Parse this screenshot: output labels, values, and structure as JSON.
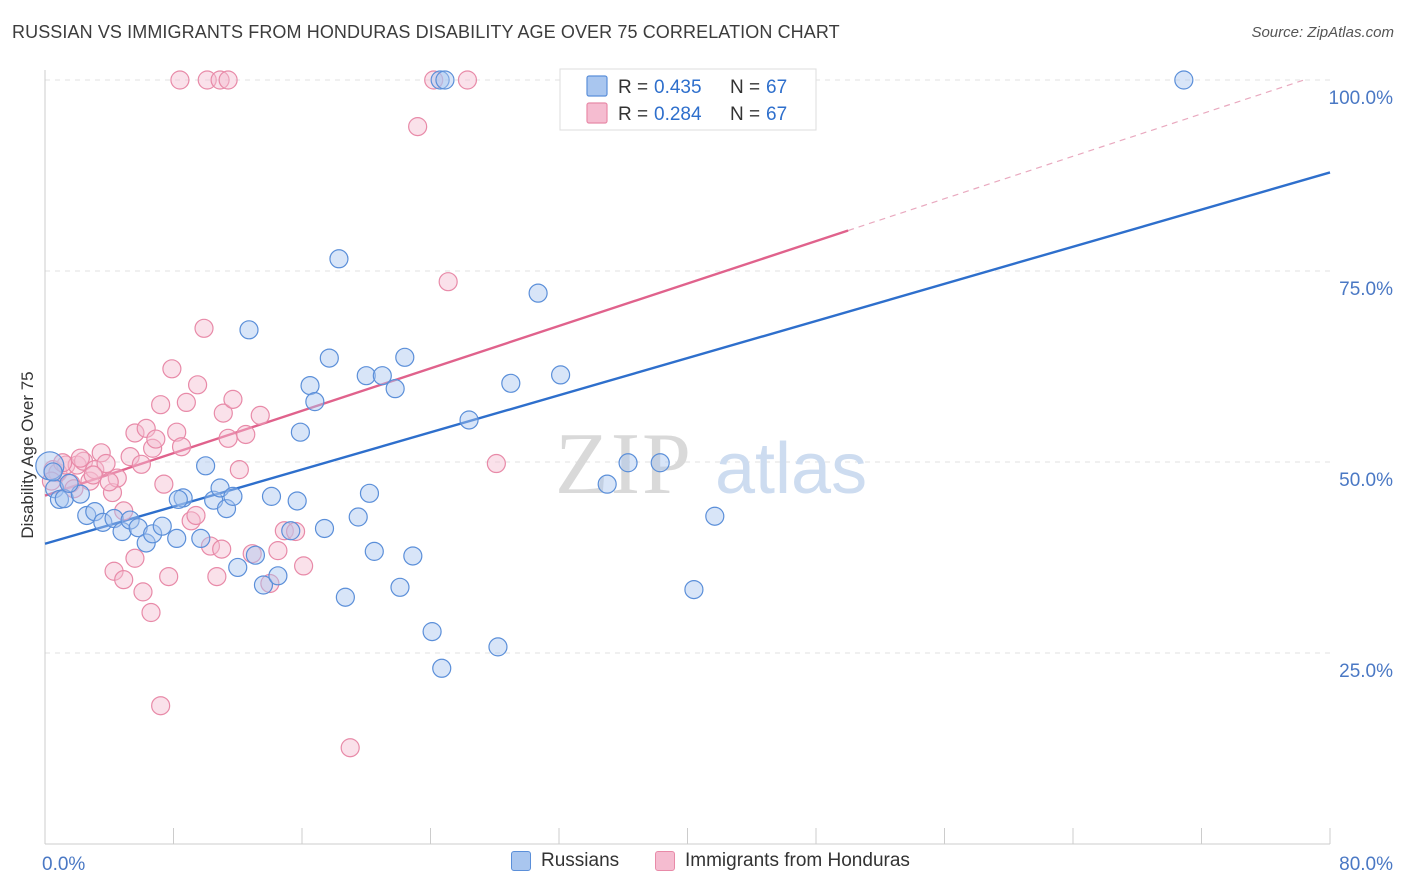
{
  "header": {
    "title": "RUSSIAN VS IMMIGRANTS FROM HONDURAS DISABILITY AGE OVER 75 CORRELATION CHART",
    "source": "Source: ZipAtlas.com"
  },
  "watermark": {
    "zip": "ZIP",
    "atlas": "atlas"
  },
  "colors": {
    "blue": "#5b8fd9",
    "blue_fill": "#a9c6ef",
    "blue_line": "#2e6fcc",
    "pink": "#e88aa8",
    "pink_fill": "#f5bcd0",
    "pink_line": "#e0628c",
    "axis_text": "#4a78c4",
    "grid": "#e2e2e2"
  },
  "legend_top": [
    {
      "r_label": "R = ",
      "r_value": "0.435",
      "n_label": "N = ",
      "n_value": "67",
      "color": "blue"
    },
    {
      "r_label": "R = ",
      "r_value": "0.284",
      "n_label": "N = ",
      "n_value": "67",
      "color": "pink"
    }
  ],
  "legend_bottom": [
    {
      "label": "Russians",
      "color": "blue"
    },
    {
      "label": "Immigrants from Honduras",
      "color": "pink"
    }
  ],
  "chart_data": {
    "type": "scatter",
    "title": "RUSSIAN VS IMMIGRANTS FROM HONDURAS DISABILITY AGE OVER 75 CORRELATION CHART",
    "xlabel": "",
    "ylabel": "Disability Age Over 75",
    "xlim": [
      0,
      80
    ],
    "ylim": [
      0,
      100
    ],
    "x_tick_labels": [
      {
        "value": 0,
        "label": "0.0%"
      },
      {
        "value": 80,
        "label": "80.0%"
      }
    ],
    "y_tick_labels": [
      {
        "value": 25,
        "label": "25.0%"
      },
      {
        "value": 50,
        "label": "50.0%"
      },
      {
        "value": 75,
        "label": "75.0%"
      },
      {
        "value": 100,
        "label": "100.0%"
      }
    ],
    "grid": true,
    "series": [
      {
        "name": "Russians",
        "color": "blue",
        "trend": {
          "x": [
            0,
            80
          ],
          "y": [
            39.3,
            87.9
          ]
        },
        "points": [
          [
            0.3,
            49.5
          ],
          [
            0.6,
            46.5
          ],
          [
            0.9,
            45.1
          ],
          [
            1.2,
            45.2
          ],
          [
            2.2,
            45.8
          ],
          [
            2.6,
            43.0
          ],
          [
            3.1,
            43.5
          ],
          [
            3.6,
            42.1
          ],
          [
            4.3,
            42.6
          ],
          [
            4.8,
            40.9
          ],
          [
            5.3,
            42.4
          ],
          [
            5.8,
            41.4
          ],
          [
            6.3,
            39.4
          ],
          [
            6.7,
            40.6
          ],
          [
            7.3,
            41.6
          ],
          [
            8.2,
            40.0
          ],
          [
            8.6,
            45.3
          ],
          [
            8.3,
            45.1
          ],
          [
            9.7,
            40.0
          ],
          [
            10.0,
            49.5
          ],
          [
            10.5,
            45.0
          ],
          [
            10.9,
            46.6
          ],
          [
            11.3,
            43.9
          ],
          [
            11.7,
            45.5
          ],
          [
            12.0,
            36.2
          ],
          [
            12.7,
            67.3
          ],
          [
            13.1,
            37.8
          ],
          [
            13.6,
            33.9
          ],
          [
            14.1,
            45.5
          ],
          [
            14.5,
            35.1
          ],
          [
            15.3,
            41.0
          ],
          [
            15.7,
            44.9
          ],
          [
            15.9,
            53.9
          ],
          [
            16.5,
            60.0
          ],
          [
            16.8,
            57.9
          ],
          [
            17.4,
            41.3
          ],
          [
            17.7,
            63.6
          ],
          [
            18.3,
            76.6
          ],
          [
            18.7,
            32.3
          ],
          [
            19.5,
            42.8
          ],
          [
            20.0,
            61.3
          ],
          [
            20.2,
            45.9
          ],
          [
            20.5,
            38.3
          ],
          [
            21.0,
            61.3
          ],
          [
            21.8,
            59.6
          ],
          [
            22.1,
            33.6
          ],
          [
            22.4,
            63.7
          ],
          [
            22.9,
            37.7
          ],
          [
            24.1,
            27.8
          ],
          [
            24.6,
            100.0
          ],
          [
            24.9,
            100.0
          ],
          [
            24.7,
            23.0
          ],
          [
            26.4,
            55.5
          ],
          [
            28.2,
            25.8
          ],
          [
            29.0,
            60.3
          ],
          [
            30.7,
            72.1
          ],
          [
            32.1,
            61.4
          ],
          [
            35.0,
            47.1
          ],
          [
            36.3,
            49.9
          ],
          [
            37.8,
            100.0
          ],
          [
            38.1,
            100.0
          ],
          [
            38.3,
            49.9
          ],
          [
            40.4,
            33.3
          ],
          [
            41.7,
            42.9
          ],
          [
            70.9,
            100.0
          ],
          [
            0.5,
            48.7
          ],
          [
            1.5,
            47.2
          ]
        ]
      },
      {
        "name": "Immigrants from Honduras",
        "color": "pink",
        "trend": {
          "x": [
            0,
            50
          ],
          "y": [
            45.6,
            80.3
          ]
        },
        "points": [
          [
            0.5,
            49.0
          ],
          [
            0.8,
            48.6
          ],
          [
            1.3,
            49.6
          ],
          [
            1.6,
            47.2
          ],
          [
            2.0,
            49.6
          ],
          [
            2.4,
            50.1
          ],
          [
            2.8,
            47.5
          ],
          [
            3.1,
            49.0
          ],
          [
            3.5,
            51.2
          ],
          [
            3.8,
            49.8
          ],
          [
            4.2,
            46.0
          ],
          [
            4.5,
            47.9
          ],
          [
            4.9,
            43.6
          ],
          [
            5.3,
            50.7
          ],
          [
            5.6,
            53.8
          ],
          [
            6.0,
            49.7
          ],
          [
            6.3,
            54.4
          ],
          [
            6.7,
            51.8
          ],
          [
            7.2,
            57.5
          ],
          [
            7.4,
            47.1
          ],
          [
            7.9,
            62.2
          ],
          [
            8.2,
            53.9
          ],
          [
            8.5,
            52.0
          ],
          [
            8.8,
            57.8
          ],
          [
            9.1,
            42.3
          ],
          [
            9.5,
            60.1
          ],
          [
            9.9,
            67.5
          ],
          [
            10.3,
            39.0
          ],
          [
            10.7,
            35.0
          ],
          [
            11.1,
            56.4
          ],
          [
            11.4,
            53.1
          ],
          [
            11.7,
            58.2
          ],
          [
            12.1,
            49.0
          ],
          [
            12.5,
            53.6
          ],
          [
            12.9,
            38.0
          ],
          [
            13.4,
            56.1
          ],
          [
            14.0,
            34.1
          ],
          [
            14.5,
            38.4
          ],
          [
            14.9,
            41.0
          ],
          [
            15.6,
            40.9
          ],
          [
            16.1,
            36.4
          ],
          [
            4.3,
            35.7
          ],
          [
            4.9,
            34.6
          ],
          [
            5.6,
            37.4
          ],
          [
            6.1,
            33.0
          ],
          [
            6.6,
            30.3
          ],
          [
            7.2,
            18.1
          ],
          [
            10.1,
            100.0
          ],
          [
            10.9,
            100.0
          ],
          [
            11.4,
            100.0
          ],
          [
            23.2,
            93.9
          ],
          [
            24.2,
            100.0
          ],
          [
            26.3,
            100.0
          ],
          [
            25.1,
            73.6
          ],
          [
            28.1,
            49.8
          ],
          [
            19.0,
            12.6
          ],
          [
            8.4,
            100.0
          ],
          [
            3.0,
            48.3
          ],
          [
            2.2,
            50.5
          ],
          [
            1.1,
            49.9
          ],
          [
            6.9,
            53.0
          ],
          [
            9.4,
            43.0
          ],
          [
            11.0,
            38.6
          ],
          [
            0.4,
            47.5
          ],
          [
            1.8,
            46.5
          ],
          [
            4.0,
            47.4
          ],
          [
            7.7,
            35.0
          ]
        ]
      }
    ]
  }
}
